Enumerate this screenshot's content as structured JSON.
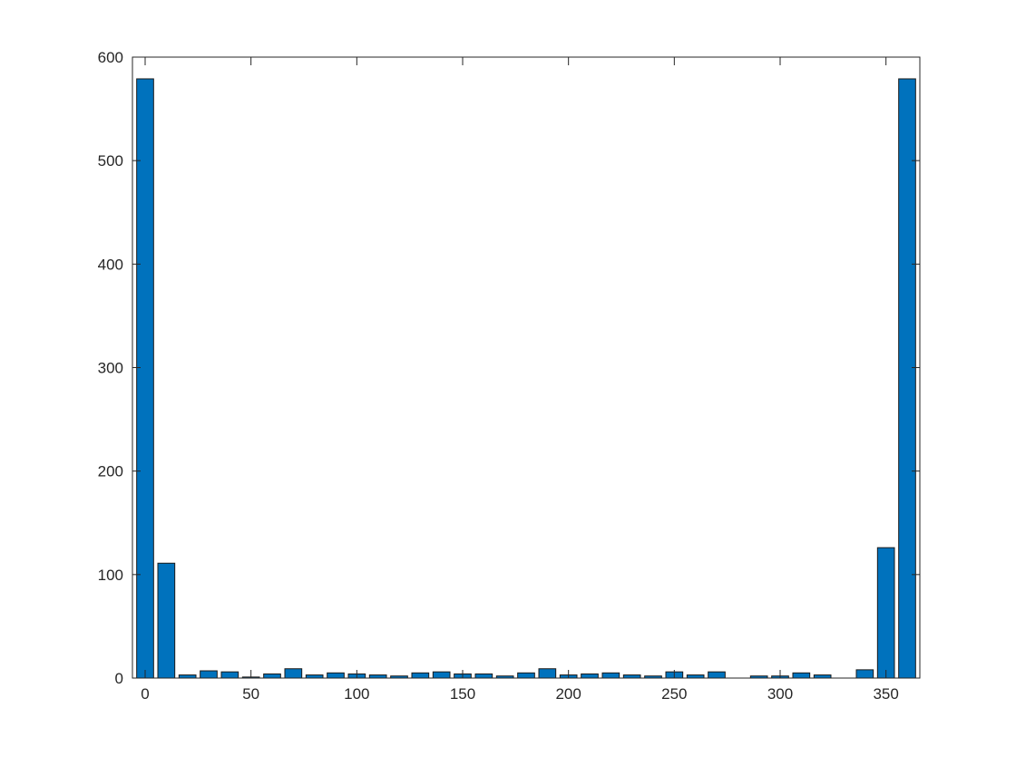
{
  "chart_data": {
    "type": "bar",
    "title": "",
    "xlabel": "",
    "ylabel": "",
    "xlim": [
      -6,
      366
    ],
    "ylim": [
      0,
      600
    ],
    "grid": false,
    "bar_width": 8,
    "bar_color": "#0072BD",
    "edge_color": "#1a1a1a",
    "x_ticks": [
      0,
      50,
      100,
      150,
      200,
      250,
      300,
      350
    ],
    "y_ticks": [
      0,
      100,
      200,
      300,
      400,
      500,
      600
    ],
    "x": [
      0,
      10,
      20,
      30,
      40,
      50,
      60,
      70,
      80,
      90,
      100,
      110,
      120,
      130,
      140,
      150,
      160,
      170,
      180,
      190,
      200,
      210,
      220,
      230,
      240,
      250,
      260,
      270,
      280,
      290,
      300,
      310,
      320,
      330,
      340,
      350,
      360
    ],
    "values": [
      579,
      111,
      3,
      7,
      6,
      1,
      4,
      9,
      3,
      5,
      4,
      3,
      2,
      5,
      6,
      4,
      4,
      2,
      5,
      9,
      3,
      4,
      5,
      3,
      2,
      6,
      3,
      6,
      0,
      2,
      2,
      5,
      3,
      0,
      8,
      126,
      579
    ]
  }
}
